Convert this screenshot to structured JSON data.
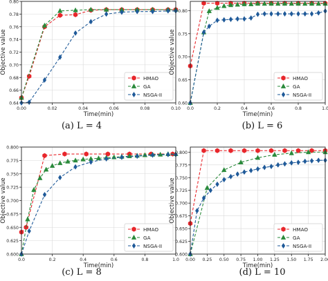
{
  "chart_data": [
    {
      "type": "line",
      "caption": "(a)  L = 4",
      "xlabel": "Time(min)",
      "ylabel": "Objective value",
      "xlim": [
        0.0,
        0.1
      ],
      "ylim": [
        0.64,
        0.8
      ],
      "xticks": [
        "0.00",
        "0.02",
        "0.04",
        "0.06",
        "0.08",
        "0.10"
      ],
      "yticks": [
        "0.64",
        "0.66",
        "0.68",
        "0.70",
        "0.72",
        "0.74",
        "0.76",
        "0.78",
        "0.80"
      ],
      "grid": true,
      "legend": "lower right",
      "series": [
        {
          "name": "HMAO",
          "color": "#e8262b",
          "marker": "hexagon",
          "x": [
            0.0,
            0.005,
            0.015,
            0.025,
            0.035,
            0.045,
            0.055,
            0.065,
            0.075,
            0.085,
            0.095,
            0.1
          ],
          "y": [
            0.648,
            0.682,
            0.76,
            0.778,
            0.779,
            0.786,
            0.787,
            0.787,
            0.787,
            0.787,
            0.787,
            0.787
          ]
        },
        {
          "name": "GA",
          "color": "#2a8a3b",
          "marker": "triangle",
          "x": [
            0.0,
            0.015,
            0.025,
            0.035,
            0.045,
            0.055,
            0.065,
            0.075,
            0.085,
            0.095,
            0.1
          ],
          "y": [
            0.648,
            0.762,
            0.785,
            0.786,
            0.787,
            0.787,
            0.787,
            0.787,
            0.787,
            0.787,
            0.787
          ]
        },
        {
          "name": "NSGA-II",
          "color": "#1f5a99",
          "marker": "diamond",
          "x": [
            0.0,
            0.005,
            0.015,
            0.025,
            0.035,
            0.045,
            0.055,
            0.065,
            0.075,
            0.085,
            0.095,
            0.1
          ],
          "y": [
            0.64,
            0.641,
            0.676,
            0.712,
            0.75,
            0.768,
            0.78,
            0.783,
            0.784,
            0.784,
            0.785,
            0.785
          ]
        }
      ]
    },
    {
      "type": "line",
      "caption": "(b)  L = 6",
      "xlabel": "Time(min)",
      "ylabel": "Objective value",
      "xlim": [
        0.0,
        1.0
      ],
      "ylim": [
        0.6,
        0.82
      ],
      "xticks": [
        "0.0",
        "0.2",
        "0.4",
        "0.6",
        "0.8",
        "1.0"
      ],
      "yticks": [
        "0.60",
        "0.65",
        "0.70",
        "0.75",
        "0.80"
      ],
      "grid": true,
      "legend": "lower right",
      "series": [
        {
          "name": "HMAO",
          "color": "#e8262b",
          "marker": "hexagon",
          "x": [
            0.0,
            0.1,
            0.2,
            0.3,
            0.4,
            0.5,
            0.6,
            0.7,
            0.8,
            0.9,
            1.0
          ],
          "y": [
            0.68,
            0.816,
            0.816,
            0.816,
            0.816,
            0.816,
            0.816,
            0.816,
            0.816,
            0.816,
            0.816
          ]
        },
        {
          "name": "GA",
          "color": "#2a8a3b",
          "marker": "triangle",
          "x": [
            0.0,
            0.1,
            0.14,
            0.2,
            0.25,
            0.3,
            0.35,
            0.4,
            0.45,
            0.5,
            0.55,
            0.6,
            0.65,
            0.7,
            0.75,
            0.8,
            0.85,
            0.9,
            0.95,
            1.0
          ],
          "y": [
            0.6,
            0.753,
            0.799,
            0.806,
            0.81,
            0.812,
            0.813,
            0.814,
            0.814,
            0.815,
            0.815,
            0.815,
            0.815,
            0.815,
            0.815,
            0.815,
            0.815,
            0.815,
            0.815,
            0.815
          ]
        },
        {
          "name": "NSGA-II",
          "color": "#1f5a99",
          "marker": "diamond",
          "x": [
            0.0,
            0.1,
            0.14,
            0.2,
            0.25,
            0.3,
            0.35,
            0.4,
            0.45,
            0.5,
            0.55,
            0.6,
            0.65,
            0.7,
            0.75,
            0.8,
            0.85,
            0.9,
            0.95,
            1.0
          ],
          "y": [
            0.6,
            0.753,
            0.766,
            0.779,
            0.78,
            0.781,
            0.782,
            0.782,
            0.784,
            0.792,
            0.793,
            0.793,
            0.793,
            0.793,
            0.793,
            0.793,
            0.793,
            0.793,
            0.795,
            0.799
          ]
        }
      ]
    },
    {
      "type": "line",
      "caption": "(c)  L = 8",
      "xlabel": "Time(min)",
      "ylabel": "Objective value",
      "xlim": [
        0.0,
        1.0
      ],
      "ylim": [
        0.6,
        0.8
      ],
      "xticks": [
        "0.0",
        "0.2",
        "0.4",
        "0.6",
        "0.8",
        "1.0"
      ],
      "yticks": [
        "0.600",
        "0.625",
        "0.650",
        "0.675",
        "0.700",
        "0.725",
        "0.750",
        "0.775",
        "0.800"
      ],
      "grid": true,
      "legend": "lower right",
      "series": [
        {
          "name": "HMAO",
          "color": "#e8262b",
          "marker": "hexagon",
          "x": [
            0.0,
            0.03,
            0.15,
            0.28,
            0.42,
            0.56,
            0.7,
            0.84,
            0.98
          ],
          "y": [
            0.641,
            0.65,
            0.784,
            0.787,
            0.787,
            0.787,
            0.787,
            0.787,
            0.787
          ]
        },
        {
          "name": "GA",
          "color": "#2a8a3b",
          "marker": "triangle",
          "x": [
            0.0,
            0.04,
            0.08,
            0.12,
            0.16,
            0.2,
            0.25,
            0.3,
            0.35,
            0.4,
            0.45,
            0.5,
            0.55,
            0.6,
            0.65,
            0.7,
            0.75,
            0.8,
            0.85,
            0.9,
            0.95,
            1.0
          ],
          "y": [
            0.6,
            0.665,
            0.72,
            0.742,
            0.758,
            0.765,
            0.77,
            0.773,
            0.775,
            0.777,
            0.778,
            0.779,
            0.78,
            0.781,
            0.782,
            0.783,
            0.784,
            0.785,
            0.786,
            0.786,
            0.787,
            0.787
          ]
        },
        {
          "name": "NSGA-II",
          "color": "#1f5a99",
          "marker": "diamond",
          "x": [
            0.0,
            0.05,
            0.15,
            0.25,
            0.35,
            0.45,
            0.55,
            0.65,
            0.75,
            0.85,
            0.95,
            1.0
          ],
          "y": [
            0.6,
            0.643,
            0.711,
            0.743,
            0.763,
            0.772,
            0.778,
            0.781,
            0.783,
            0.785,
            0.786,
            0.786
          ]
        }
      ]
    },
    {
      "type": "line",
      "caption": "(d)  L = 10",
      "xlabel": "Time(min)",
      "ylabel": "Objective value",
      "xlim": [
        0.0,
        2.0
      ],
      "ylim": [
        0.6,
        0.81
      ],
      "xticks": [
        "0.00",
        "0.25",
        "0.50",
        "0.75",
        "1.00",
        "1.25",
        "1.50",
        "1.75",
        "2.00"
      ],
      "yticks": [
        "0.600",
        "0.625",
        "0.650",
        "0.675",
        "0.700",
        "0.725",
        "0.750",
        "0.775",
        "0.800"
      ],
      "grid": true,
      "legend": "lower right",
      "series": [
        {
          "name": "HMAO",
          "color": "#e8262b",
          "marker": "hexagon",
          "x": [
            0.0,
            0.2,
            0.4,
            0.6,
            0.8,
            1.0,
            1.2,
            1.4,
            1.6,
            1.8,
            2.0
          ],
          "y": [
            0.66,
            0.803,
            0.803,
            0.803,
            0.803,
            0.803,
            0.803,
            0.803,
            0.803,
            0.803,
            0.803
          ]
        },
        {
          "name": "GA",
          "color": "#2a8a3b",
          "marker": "triangle",
          "x": [
            0.0,
            0.25,
            0.5,
            0.75,
            1.0,
            1.25,
            1.5,
            1.75,
            2.0
          ],
          "y": [
            0.6,
            0.73,
            0.765,
            0.78,
            0.789,
            0.795,
            0.798,
            0.8,
            0.8
          ]
        },
        {
          "name": "NSGA-II",
          "color": "#1f5a99",
          "marker": "diamond",
          "x": [
            0.0,
            0.1,
            0.2,
            0.3,
            0.4,
            0.5,
            0.6,
            0.7,
            0.8,
            0.9,
            1.0,
            1.1,
            1.2,
            1.3,
            1.4,
            1.5,
            1.6,
            1.7,
            1.8,
            1.9,
            2.0
          ],
          "y": [
            0.6,
            0.685,
            0.71,
            0.725,
            0.737,
            0.746,
            0.752,
            0.757,
            0.761,
            0.764,
            0.767,
            0.77,
            0.772,
            0.775,
            0.777,
            0.779,
            0.78,
            0.782,
            0.783,
            0.784,
            0.784
          ]
        }
      ]
    }
  ]
}
